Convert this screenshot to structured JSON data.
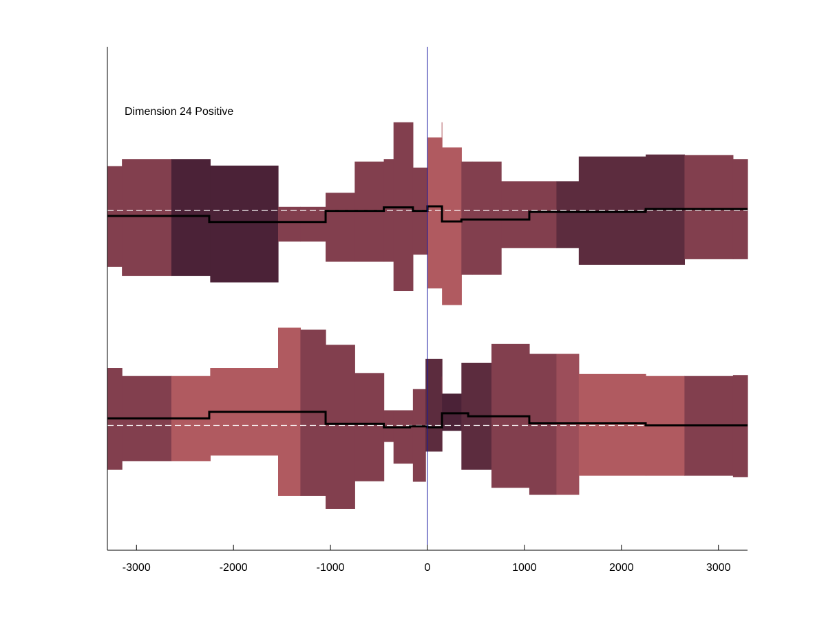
{
  "chart_data": {
    "type": "area",
    "title": "",
    "xlabel": "",
    "ylabel": "",
    "annotation": "Dimension 24 Positive",
    "xlim": [
      -3300,
      3300
    ],
    "xticks": [
      -3000,
      -2000,
      -1000,
      0,
      1000,
      2000,
      3000
    ],
    "xtick_labels": [
      "-3000",
      "-2000",
      "-1000",
      "0",
      "1000",
      "2000",
      "3000"
    ],
    "ylim": [
      0,
      1
    ],
    "grid": false,
    "legend": "none",
    "center_line_x": 0,
    "colors": {
      "light": "#b05a60",
      "medium": "#823f4e",
      "mid": "#9c4e5a",
      "dark": "#5c2c3e",
      "darkest": "#4b2237",
      "mean_line": "#000000",
      "baseline": "#ffffff",
      "center_line": "#1a1aa0"
    },
    "panels": [
      {
        "name": "",
        "baseline": 0.675,
        "bands": [
          {
            "x0": -3300,
            "x1": -3150,
            "low": 0.563,
            "high": 0.763,
            "color": "medium"
          },
          {
            "x0": -3150,
            "x1": -2640,
            "low": 0.545,
            "high": 0.777,
            "color": "medium"
          },
          {
            "x0": -2640,
            "x1": -2240,
            "low": 0.545,
            "high": 0.777,
            "color": "darkest"
          },
          {
            "x0": -2240,
            "x1": -1540,
            "low": 0.532,
            "high": 0.764,
            "color": "darkest"
          },
          {
            "x0": -1540,
            "x1": -1310,
            "low": 0.613,
            "high": 0.682,
            "color": "medium"
          },
          {
            "x0": -1310,
            "x1": -1050,
            "low": 0.613,
            "high": 0.682,
            "color": "medium"
          },
          {
            "x0": -1050,
            "x1": -750,
            "low": 0.573,
            "high": 0.71,
            "color": "medium"
          },
          {
            "x0": -750,
            "x1": -450,
            "low": 0.573,
            "high": 0.772,
            "color": "medium"
          },
          {
            "x0": -450,
            "x1": -350,
            "low": 0.573,
            "high": 0.777,
            "color": "medium"
          },
          {
            "x0": -350,
            "x1": -150,
            "low": 0.515,
            "high": 0.85,
            "color": "medium"
          },
          {
            "x0": -150,
            "x1": 0,
            "low": 0.587,
            "high": 0.76,
            "color": "medium"
          },
          {
            "x0": 0,
            "x1": 150,
            "low": 0.52,
            "high": 0.82,
            "color": "light"
          },
          {
            "x0": 150,
            "x1": 350,
            "low": 0.487,
            "high": 0.8,
            "color": "light"
          },
          {
            "x0": 350,
            "x1": 460,
            "low": 0.547,
            "high": 0.772,
            "color": "medium"
          },
          {
            "x0": 460,
            "x1": 760,
            "low": 0.547,
            "high": 0.772,
            "color": "medium"
          },
          {
            "x0": 760,
            "x1": 1330,
            "low": 0.6,
            "high": 0.733,
            "color": "medium"
          },
          {
            "x0": 1330,
            "x1": 1560,
            "low": 0.6,
            "high": 0.733,
            "color": "dark"
          },
          {
            "x0": 1560,
            "x1": 2250,
            "low": 0.567,
            "high": 0.782,
            "color": "dark"
          },
          {
            "x0": 2250,
            "x1": 2650,
            "low": 0.567,
            "high": 0.786,
            "color": "dark"
          },
          {
            "x0": 2650,
            "x1": 3150,
            "low": 0.578,
            "high": 0.785,
            "color": "medium"
          },
          {
            "x0": 3150,
            "x1": 3300,
            "low": 0.578,
            "high": 0.777,
            "color": "medium"
          }
        ],
        "mean": {
          "x": [
            -3300,
            -2250,
            -2250,
            -1050,
            -1050,
            -450,
            -450,
            -150,
            -150,
            0,
            0,
            150,
            150,
            350,
            350,
            1050,
            1050,
            2250,
            2250,
            3300
          ],
          "y": [
            0.664,
            0.664,
            0.652,
            0.652,
            0.674,
            0.674,
            0.681,
            0.681,
            0.674,
            0.674,
            0.683,
            0.683,
            0.653,
            0.653,
            0.657,
            0.657,
            0.672,
            0.672,
            0.678,
            0.678
          ]
        }
      },
      {
        "name": "",
        "baseline": 0.248,
        "bands": [
          {
            "x0": -3300,
            "x1": -3150,
            "low": 0.16,
            "high": 0.362,
            "color": "medium"
          },
          {
            "x0": -3150,
            "x1": -2640,
            "low": 0.177,
            "high": 0.346,
            "color": "medium"
          },
          {
            "x0": -2640,
            "x1": -2240,
            "low": 0.177,
            "high": 0.346,
            "color": "light"
          },
          {
            "x0": -2240,
            "x1": -1540,
            "low": 0.188,
            "high": 0.362,
            "color": "light"
          },
          {
            "x0": -1540,
            "x1": -1310,
            "low": 0.108,
            "high": 0.442,
            "color": "light"
          },
          {
            "x0": -1310,
            "x1": -1050,
            "low": 0.108,
            "high": 0.438,
            "color": "medium"
          },
          {
            "x0": -1050,
            "x1": -750,
            "low": 0.082,
            "high": 0.408,
            "color": "medium"
          },
          {
            "x0": -750,
            "x1": -450,
            "low": 0.137,
            "high": 0.352,
            "color": "medium"
          },
          {
            "x0": -450,
            "x1": -350,
            "low": 0.215,
            "high": 0.278,
            "color": "medium"
          },
          {
            "x0": -350,
            "x1": -150,
            "low": 0.172,
            "high": 0.278,
            "color": "medium"
          },
          {
            "x0": -150,
            "x1": -20,
            "low": 0.136,
            "high": 0.32,
            "color": "medium"
          },
          {
            "x0": -20,
            "x1": 150,
            "low": 0.196,
            "high": 0.38,
            "color": "dark"
          },
          {
            "x0": 150,
            "x1": 350,
            "low": 0.237,
            "high": 0.311,
            "color": "darkest"
          },
          {
            "x0": 350,
            "x1": 660,
            "low": 0.16,
            "high": 0.372,
            "color": "dark"
          },
          {
            "x0": 660,
            "x1": 1050,
            "low": 0.124,
            "high": 0.41,
            "color": "medium"
          },
          {
            "x0": 1050,
            "x1": 1330,
            "low": 0.11,
            "high": 0.39,
            "color": "medium"
          },
          {
            "x0": 1330,
            "x1": 1560,
            "low": 0.11,
            "high": 0.39,
            "color": "mid"
          },
          {
            "x0": 1560,
            "x1": 2250,
            "low": 0.148,
            "high": 0.35,
            "color": "light"
          },
          {
            "x0": 2250,
            "x1": 2650,
            "low": 0.148,
            "high": 0.346,
            "color": "light"
          },
          {
            "x0": 2650,
            "x1": 3150,
            "low": 0.148,
            "high": 0.346,
            "color": "medium"
          },
          {
            "x0": 3150,
            "x1": 3300,
            "low": 0.145,
            "high": 0.348,
            "color": "medium"
          }
        ],
        "mean": {
          "x": [
            -3300,
            -2250,
            -2250,
            -1050,
            -1050,
            -450,
            -450,
            -180,
            -180,
            0,
            0,
            150,
            150,
            420,
            420,
            1050,
            1050,
            2250,
            2250,
            3300
          ],
          "y": [
            0.262,
            0.262,
            0.275,
            0.275,
            0.251,
            0.251,
            0.244,
            0.244,
            0.246,
            0.246,
            0.244,
            0.244,
            0.272,
            0.272,
            0.266,
            0.266,
            0.252,
            0.252,
            0.248,
            0.248
          ]
        }
      }
    ]
  }
}
